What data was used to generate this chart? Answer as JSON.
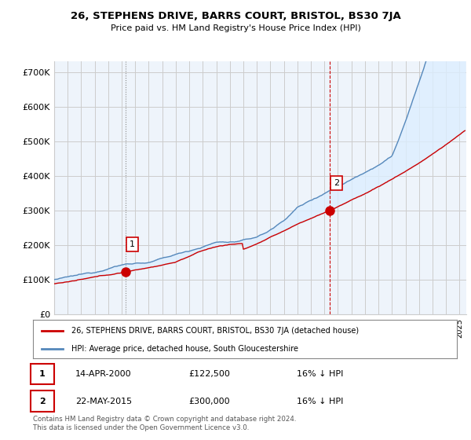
{
  "title": "26, STEPHENS DRIVE, BARRS COURT, BRISTOL, BS30 7JA",
  "subtitle": "Price paid vs. HM Land Registry's House Price Index (HPI)",
  "ylabel_ticks": [
    "£0",
    "£100K",
    "£200K",
    "£300K",
    "£400K",
    "£500K",
    "£600K",
    "£700K"
  ],
  "ytick_values": [
    0,
    100000,
    200000,
    300000,
    400000,
    500000,
    600000,
    700000
  ],
  "ylim": [
    0,
    730000
  ],
  "xlim_start": 1995.0,
  "xlim_end": 2025.5,
  "transaction1": {
    "date_num": 2000.28,
    "price": 122500,
    "label": "1"
  },
  "transaction2": {
    "date_num": 2015.38,
    "price": 300000,
    "label": "2"
  },
  "legend_red": "26, STEPHENS DRIVE, BARRS COURT, BRISTOL, BS30 7JA (detached house)",
  "legend_blue": "HPI: Average price, detached house, South Gloucestershire",
  "table_row1": [
    "1",
    "14-APR-2000",
    "£122,500",
    "16% ↓ HPI"
  ],
  "table_row2": [
    "2",
    "22-MAY-2015",
    "£300,000",
    "16% ↓ HPI"
  ],
  "footer": "Contains HM Land Registry data © Crown copyright and database right 2024.\nThis data is licensed under the Open Government Licence v3.0.",
  "red_color": "#cc0000",
  "blue_color": "#5588bb",
  "fill_color": "#ddeeff",
  "grid_color": "#cccccc",
  "vline1_color": "#888888",
  "vline2_color": "#cc0000",
  "bg_color": "#ffffff",
  "plot_bg_color": "#eef4fb"
}
